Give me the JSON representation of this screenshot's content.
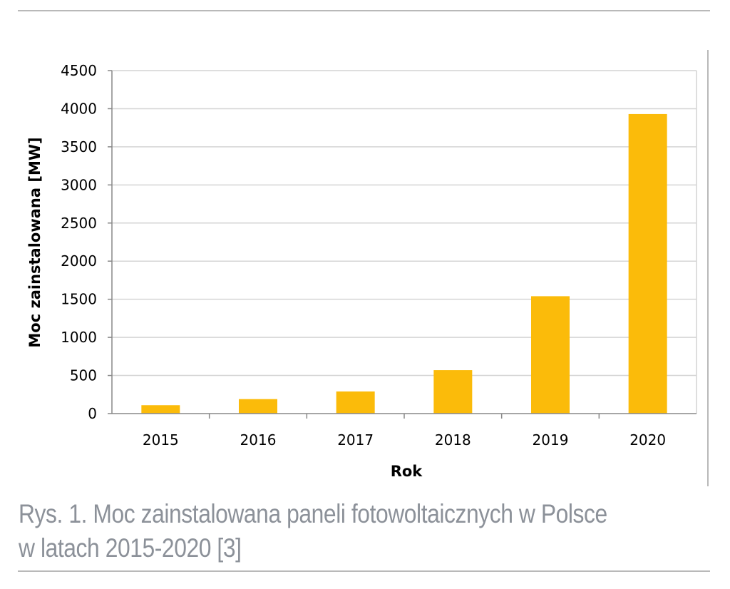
{
  "chart_data": {
    "type": "bar",
    "categories": [
      "2015",
      "2016",
      "2017",
      "2018",
      "2019",
      "2020"
    ],
    "values": [
      110,
      190,
      290,
      570,
      1540,
      3930
    ],
    "xlabel": "Rok",
    "ylabel": "Moc zainstalowana [MW]",
    "ylim": [
      0,
      4500
    ],
    "yticks": [
      "0",
      "500",
      "1000",
      "1500",
      "2000",
      "2500",
      "3000",
      "3500",
      "4000",
      "4500"
    ],
    "grid": true,
    "bar_color": "#fbbb0a"
  },
  "caption": {
    "line1": "Rys. 1. Moc zainstalowana paneli fotowoltaicznych w Polsce",
    "line2": "w latach 2015-2020 [3]"
  }
}
